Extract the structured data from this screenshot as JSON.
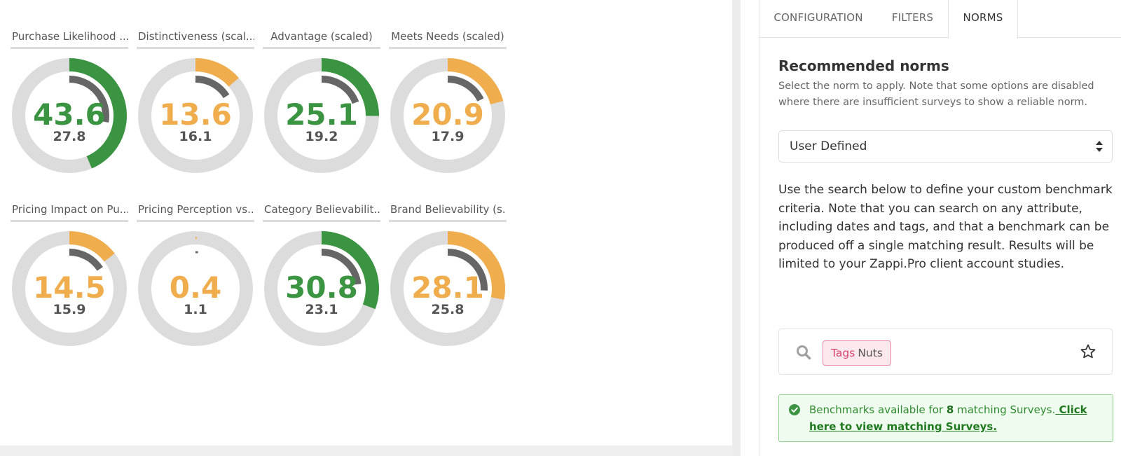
{
  "tiles": [
    {
      "title": "Purchase Likelihood ...",
      "value": "43.6",
      "norm": "27.8",
      "value_fraction": 0.436,
      "norm_fraction": 0.278,
      "status": "good"
    },
    {
      "title": "Distinctiveness (scal...",
      "value": "13.6",
      "norm": "16.1",
      "value_fraction": 0.136,
      "norm_fraction": 0.161,
      "status": "warn"
    },
    {
      "title": "Advantage (scaled)",
      "value": "25.1",
      "norm": "19.2",
      "value_fraction": 0.251,
      "norm_fraction": 0.192,
      "status": "good"
    },
    {
      "title": "Meets Needs (scaled)",
      "value": "20.9",
      "norm": "17.9",
      "value_fraction": 0.209,
      "norm_fraction": 0.179,
      "status": "warn"
    },
    {
      "title": "Pricing Impact on Pu...",
      "value": "14.5",
      "norm": "15.9",
      "value_fraction": 0.145,
      "norm_fraction": 0.159,
      "status": "warn"
    },
    {
      "title": "Pricing Perception vs...",
      "value": "0.4",
      "norm": "1.1",
      "value_fraction": 0.004,
      "norm_fraction": 0.011,
      "status": "warn"
    },
    {
      "title": "Category Believabilit...",
      "value": "30.8",
      "norm": "23.1",
      "value_fraction": 0.308,
      "norm_fraction": 0.231,
      "status": "good"
    },
    {
      "title": "Brand Believability (s...",
      "value": "28.1",
      "norm": "25.8",
      "value_fraction": 0.281,
      "norm_fraction": 0.258,
      "status": "warn"
    }
  ],
  "colors": {
    "good": "#3b9441",
    "warn": "#f0ad4e",
    "norm_arc": "#666666",
    "track": "#dcdcdc",
    "norm_text": "#555555"
  },
  "tabs": {
    "configuration": "CONFIGURATION",
    "filters": "FILTERS",
    "norms": "NORMS"
  },
  "norms": {
    "title": "Recommended norms",
    "description": "Select the norm to apply. Note that some options are disabled where there are insufficient surveys to show a reliable norm.",
    "selected": "User Defined",
    "help_text": "Use the search below to define your custom benchmark criteria. Note that you can search on any attribute, including dates and tags, and that a benchmark can be produced off a single matching result. Results will be limited to your Zappi.Pro client account studies.",
    "search": {
      "icon": "search-icon",
      "tag_key": "Tags",
      "tag_value": "Nuts",
      "star_icon": "star-icon"
    },
    "alert": {
      "prefix": "Benchmarks available for ",
      "count": "8",
      "suffix": " matching Surveys.",
      "link": " Click here to view matching Surveys."
    }
  }
}
